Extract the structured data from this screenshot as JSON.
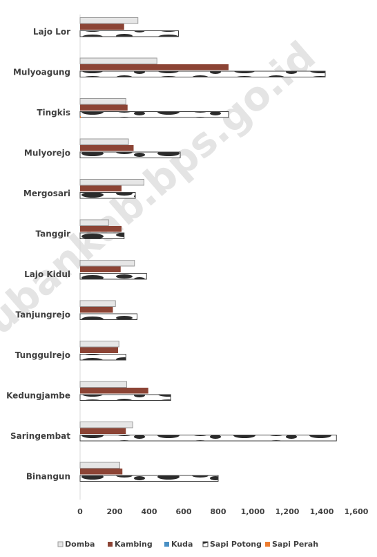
{
  "chart_data": {
    "type": "bar",
    "orientation": "horizontal",
    "categories": [
      "Lajo Lor",
      "Mulyoagung",
      "Tingkis",
      "Mulyorejo",
      "Mergosari",
      "Tanggir",
      "Lajo Kidul",
      "Tanjungrejo",
      "Tunggulrejo",
      "Kedungjambe",
      "Saringembat",
      "Binangun"
    ],
    "series": [
      {
        "name": "Domba",
        "color": "#e6e6e6",
        "values": [
          335,
          445,
          265,
          280,
          370,
          165,
          315,
          205,
          225,
          270,
          305,
          230
        ]
      },
      {
        "name": "Kambing",
        "color": "#8c4435",
        "values": [
          255,
          860,
          275,
          310,
          240,
          240,
          235,
          190,
          220,
          395,
          265,
          245
        ]
      },
      {
        "name": "Kuda",
        "color": "#4a90c4",
        "values": [
          0,
          0,
          0,
          0,
          0,
          0,
          0,
          0,
          0,
          0,
          0,
          0
        ]
      },
      {
        "name": "Sapi Potong",
        "color": "#ffffff",
        "pattern": "cow-hide",
        "values": [
          570,
          1420,
          860,
          580,
          320,
          255,
          385,
          330,
          265,
          525,
          1485,
          800
        ]
      },
      {
        "name": "Sapi Perah",
        "color": "#ed7d31",
        "values": [
          0,
          0,
          4,
          0,
          0,
          0,
          0,
          0,
          0,
          0,
          0,
          0
        ]
      }
    ],
    "xlim": [
      0,
      1600
    ],
    "xticks": [
      "0",
      "200",
      "400",
      "600",
      "800",
      "1,000",
      "1,200",
      "1,400",
      "1,600"
    ],
    "xtick_values": [
      0,
      200,
      400,
      600,
      800,
      1000,
      1200,
      1400,
      1600
    ],
    "grid": false,
    "legend_position": "bottom",
    "legend_entries": [
      "Domba",
      "Kambing",
      "Kuda",
      "Sapi Potong",
      "Sapi Perah"
    ],
    "watermark": "tubankab.bps.go.id"
  }
}
